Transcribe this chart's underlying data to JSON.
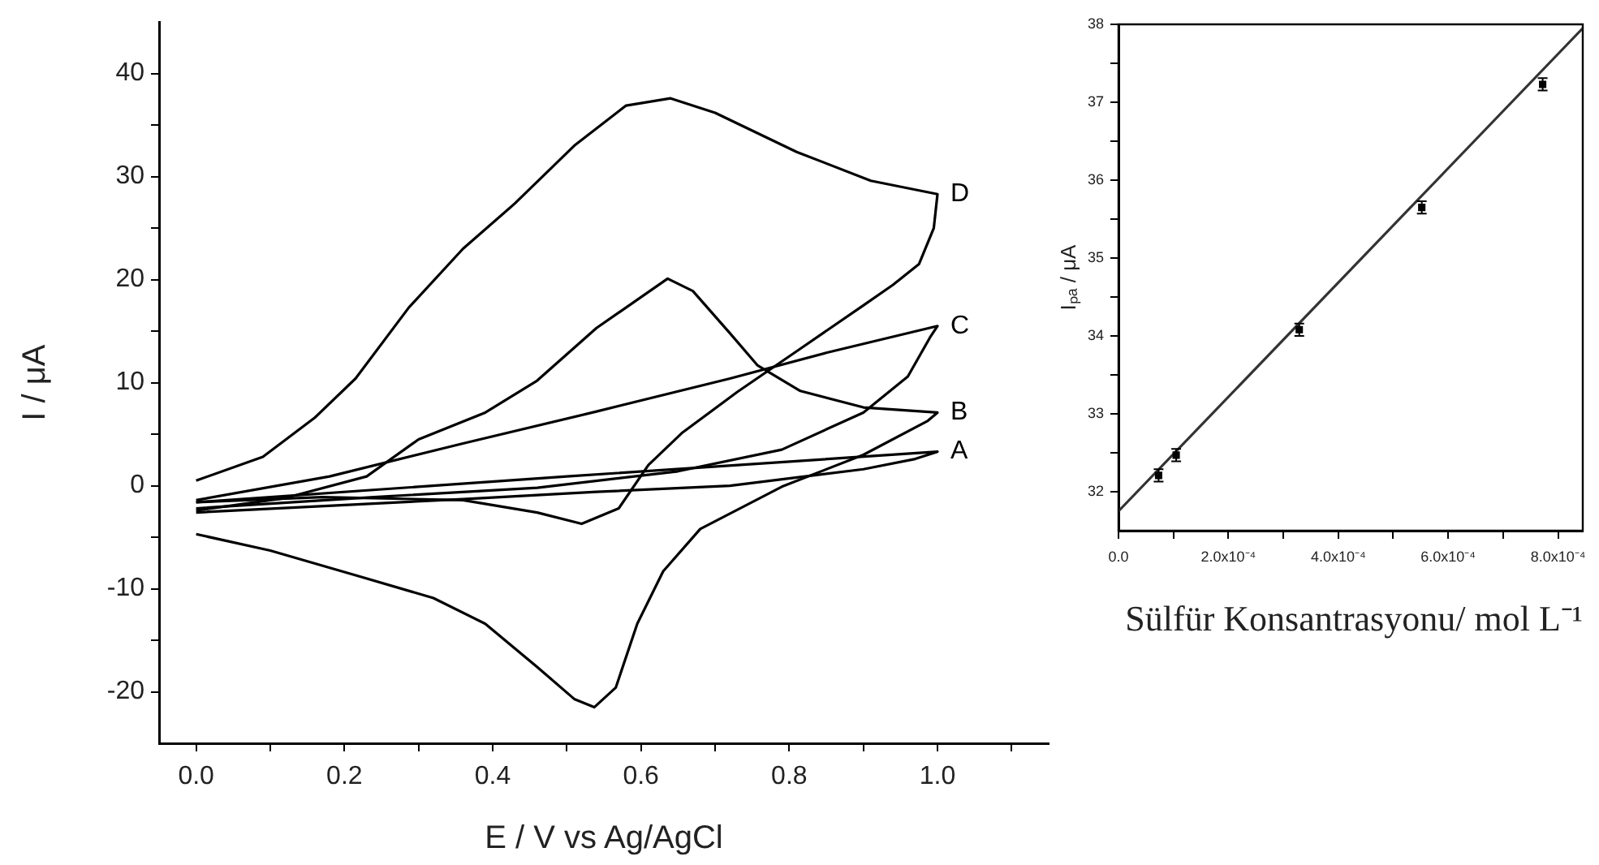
{
  "chart_data": [
    {
      "type": "line",
      "xlabel": "E / V vs Ag/AgCl",
      "ylabel": "I / μA",
      "xlim": [
        -0.05,
        1.15
      ],
      "ylim": [
        -25,
        45
      ],
      "xticks": [
        {
          "value": 0,
          "label": "0.0"
        },
        {
          "value": 0.1,
          "label": null
        },
        {
          "value": 0.2,
          "label": "0.2"
        },
        {
          "value": 0.3,
          "label": null
        },
        {
          "value": 0.4,
          "label": "0.4"
        },
        {
          "value": 0.5,
          "label": null
        },
        {
          "value": 0.6,
          "label": "0.6"
        },
        {
          "value": 0.7,
          "label": null
        },
        {
          "value": 0.8,
          "label": "0.8"
        },
        {
          "value": 0.9,
          "label": null
        },
        {
          "value": 1,
          "label": "1.0"
        },
        {
          "value": 1.1,
          "label": null
        }
      ],
      "yticks": [
        -20,
        {
          "value": -15,
          "label": null
        },
        -10,
        {
          "value": -5,
          "label": null
        },
        0,
        {
          "value": 5,
          "label": null
        },
        10,
        {
          "value": 15,
          "label": null
        },
        20,
        {
          "value": 25,
          "label": null
        },
        30,
        {
          "value": 35,
          "label": null
        },
        40
      ],
      "series": [
        {
          "name": "A",
          "color": "#000000",
          "x": [
            0,
            0.36,
            0.54,
            0.72,
            0.9,
            0.97,
            1.0,
            0.5,
            0
          ],
          "values": [
            -2.6,
            -1.3,
            -0.6,
            0.0,
            1.6,
            2.6,
            3.3,
            0.9,
            -1.6
          ]
        },
        {
          "name": "B",
          "color": "#000000",
          "x": [
            0,
            0.12,
            0.23,
            0.3,
            0.39,
            0.46,
            0.54,
            0.636,
            0.67,
            0.72,
            0.757,
            0.815,
            0.9,
            1.0,
            0.987,
            0.9,
            0.79,
            0.68,
            0.63,
            0.595,
            0.566,
            0.537,
            0.51,
            0.46,
            0.39,
            0.32,
            0.22,
            0.1,
            0
          ],
          "values": [
            -2.4,
            -1.2,
            0.9,
            4.5,
            7.1,
            10.2,
            15.3,
            20.1,
            18.9,
            14.8,
            11.7,
            9.2,
            7.6,
            7.1,
            6.3,
            3.0,
            -0.1,
            -4.2,
            -8.3,
            -13.4,
            -19.6,
            -21.5,
            -20.7,
            -17.6,
            -13.4,
            -10.9,
            -8.8,
            -6.3,
            -4.7
          ]
        },
        {
          "name": "C",
          "color": "#000000",
          "x": [
            0,
            0.24,
            0.46,
            0.65,
            0.79,
            0.9,
            0.96,
            0.99,
            1.0,
            0.85,
            0.72,
            0.54,
            0.36,
            0.18,
            0
          ],
          "values": [
            -2.2,
            -1.1,
            -0.2,
            1.4,
            3.5,
            7.1,
            10.6,
            14.4,
            15.5,
            12.9,
            10.4,
            7.2,
            4.1,
            0.9,
            -1.4
          ]
        },
        {
          "name": "D",
          "color": "#000000",
          "x": [
            0,
            0.09,
            0.16,
            0.215,
            0.287,
            0.36,
            0.43,
            0.51,
            0.58,
            0.64,
            0.7,
            0.81,
            0.91,
            1.0,
            0.995,
            0.975,
            0.94,
            0.9,
            0.815,
            0.73,
            0.655,
            0.61,
            0.57,
            0.52,
            0.46,
            0.36,
            0.17,
            0
          ],
          "values": [
            0.5,
            2.8,
            6.6,
            10.4,
            17.3,
            23.0,
            27.4,
            33.0,
            36.9,
            37.6,
            36.2,
            32.4,
            29.6,
            28.3,
            25.0,
            21.5,
            19.5,
            17.5,
            13.3,
            9.1,
            5.1,
            2.0,
            -2.2,
            -3.7,
            -2.6,
            -1.4,
            -1.1,
            -1.6
          ]
        }
      ]
    },
    {
      "type": "scatter",
      "xlabel": "Sülfür Konsantrasyonu/ mol L⁻¹",
      "ylabel": "Iₚₐ / μA",
      "xlim": [
        0,
        0.000845
      ],
      "ylim": [
        31.5,
        38
      ],
      "xticks": [
        {
          "value": 0,
          "label": "0.0"
        },
        {
          "value": 0.0001,
          "label": null
        },
        {
          "value": 0.0002,
          "label": "2.0x10⁻⁴"
        },
        {
          "value": 0.0003,
          "label": null
        },
        {
          "value": 0.0004,
          "label": "4.0x10⁻⁴"
        },
        {
          "value": 0.0005,
          "label": null
        },
        {
          "value": 0.0006,
          "label": "6.0x10⁻⁴"
        },
        {
          "value": 0.0007,
          "label": null
        },
        {
          "value": 0.0008,
          "label": "8.0x10⁻⁴"
        }
      ],
      "yticks": [
        32,
        {
          "value": 32.5,
          "label": null
        },
        33,
        {
          "value": 33.5,
          "label": null
        },
        34,
        {
          "value": 34.5,
          "label": null
        },
        35,
        {
          "value": 35.5,
          "label": null
        },
        36,
        {
          "value": 36.5,
          "label": null
        },
        37,
        {
          "value": 37.5,
          "label": null
        },
        38
      ],
      "series": [
        {
          "marker": "square",
          "color": "#000000",
          "x": [
            7.3e-05,
            0.000105,
            0.000329,
            0.000552,
            0.000772
          ],
          "values": [
            32.21,
            32.47,
            34.08,
            35.65,
            37.23
          ],
          "errors": [
            0.08,
            0.08,
            0.08,
            0.08,
            0.08
          ]
        },
        {
          "type": "line",
          "color": "#333333",
          "x": [
            0,
            0.000845
          ],
          "values": [
            31.75,
            37.95
          ]
        }
      ]
    }
  ]
}
